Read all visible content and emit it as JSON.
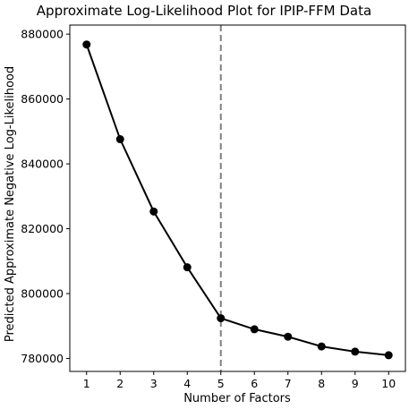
{
  "chart_data": {
    "type": "line",
    "title": "Approximate Log-Likelihood Plot for IPIP-FFM Data",
    "xlabel": "Number of Factors",
    "ylabel": "Predicted Approximate Negative Log-Likelihood",
    "x": [
      1,
      2,
      3,
      4,
      5,
      6,
      7,
      8,
      9,
      10
    ],
    "series": [
      {
        "values": [
          876800,
          847600,
          825300,
          808100,
          792400,
          789000,
          786700,
          783700,
          782100,
          781000
        ]
      }
    ],
    "xlim": [
      0.5,
      10.5
    ],
    "ylim": [
      776000,
      882800
    ],
    "xticks": [
      "1",
      "2",
      "3",
      "4",
      "5",
      "6",
      "7",
      "8",
      "9",
      "10"
    ],
    "yticks": [
      {
        "value": 780000,
        "label": "780000"
      },
      {
        "value": 800000,
        "label": "800000"
      },
      {
        "value": 820000,
        "label": "820000"
      },
      {
        "value": 840000,
        "label": "840000"
      },
      {
        "value": 860000,
        "label": "860000"
      },
      {
        "value": 880000,
        "label": "880000"
      }
    ],
    "reference_line": {
      "x": 5,
      "style": "dashed",
      "color": "#808080"
    },
    "line_color": "#000000",
    "marker_color": "#000000",
    "grid": false,
    "legend": "none"
  }
}
